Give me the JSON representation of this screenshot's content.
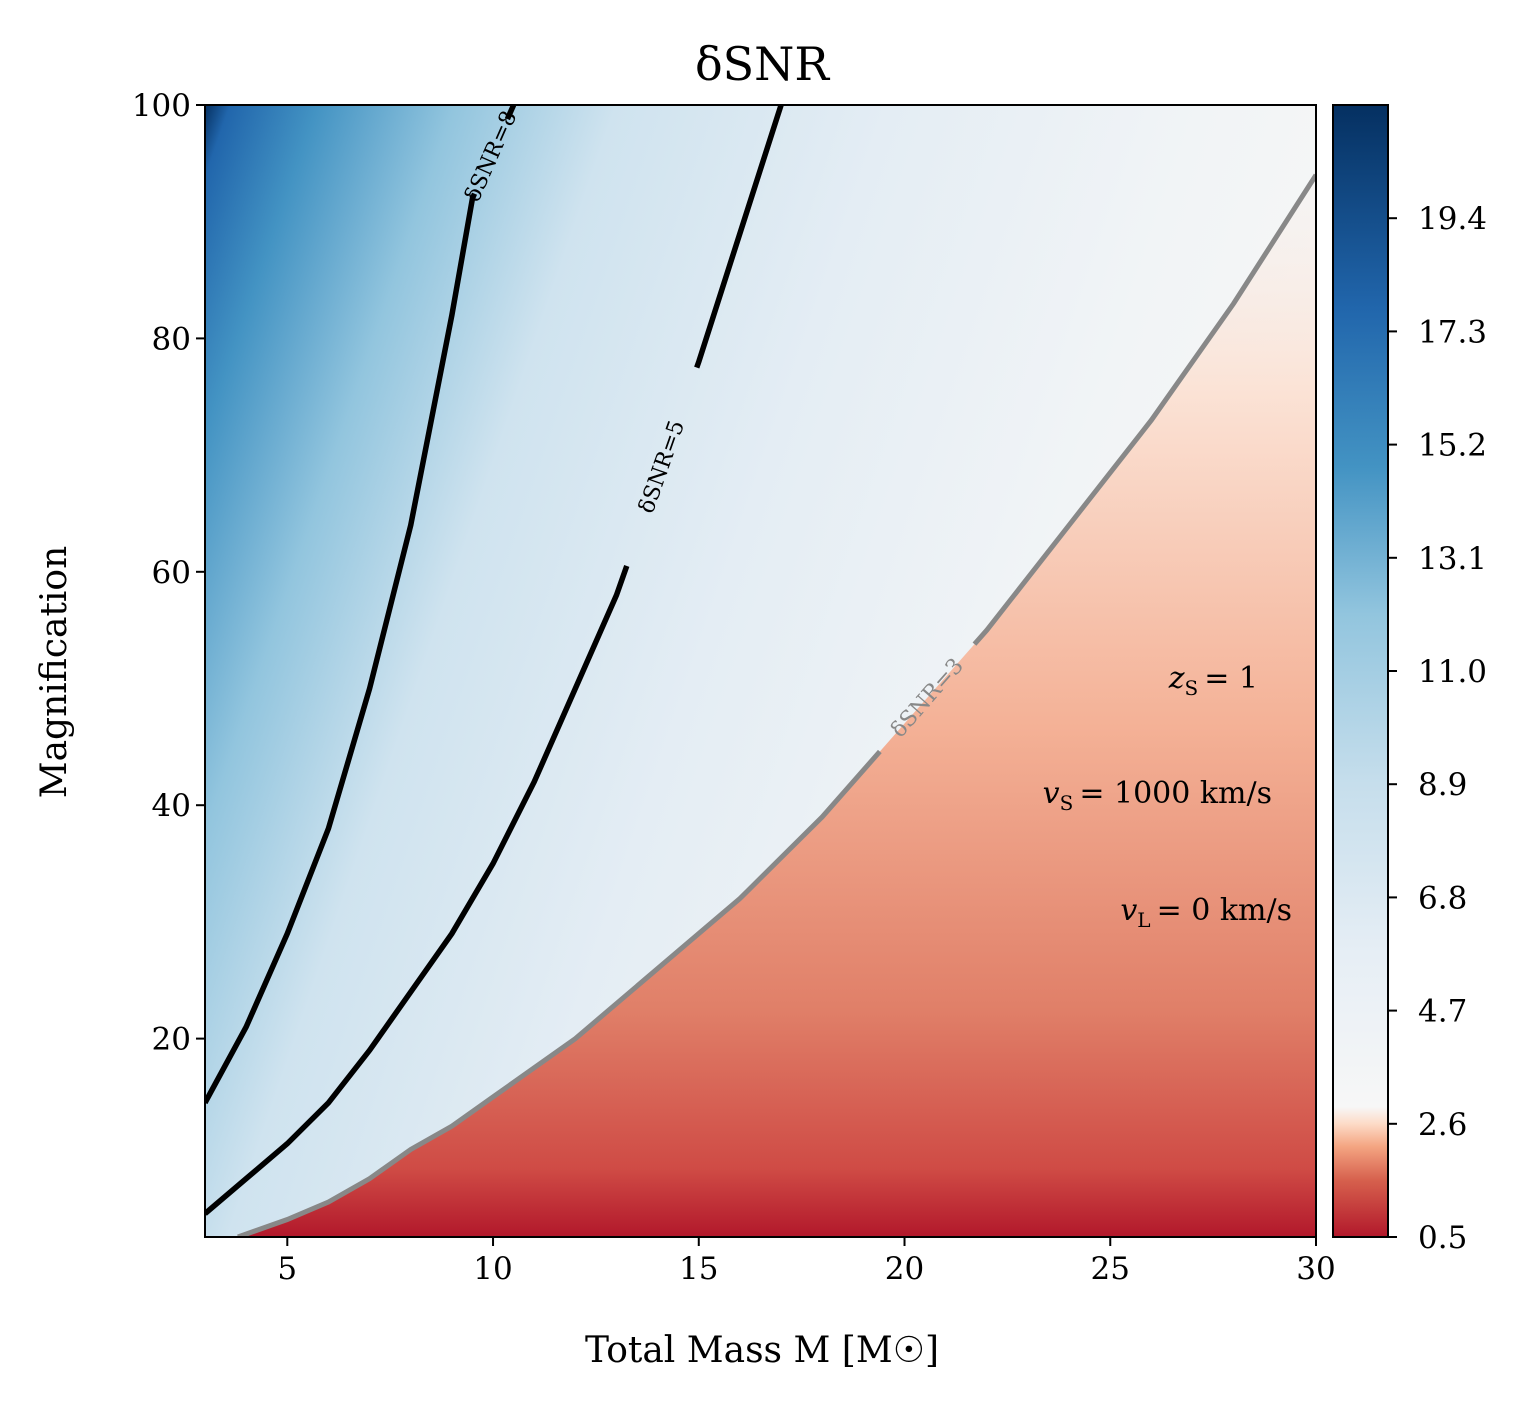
{
  "chart_data": {
    "type": "heatmap",
    "title": "δSNR",
    "xlabel": "Total Mass M [M☉]",
    "ylabel": "Magnification",
    "xlim": [
      3,
      30
    ],
    "ylim": [
      3,
      100
    ],
    "x_ticks": [
      5,
      10,
      15,
      20,
      25,
      30
    ],
    "y_ticks": [
      20,
      40,
      60,
      80,
      100
    ],
    "colormap": "RdBu",
    "colorbar": {
      "range": [
        0.5,
        21.5
      ],
      "ticks": [
        "0.5",
        "2.6",
        "4.7",
        "6.8",
        "8.9",
        "11.0",
        "13.1",
        "15.2",
        "17.3",
        "19.4"
      ]
    },
    "contours": [
      {
        "label": "δSNR=8",
        "level": 8,
        "color": "#000000",
        "points": [
          [
            3,
            14.5
          ],
          [
            4,
            21
          ],
          [
            5,
            29
          ],
          [
            6,
            38
          ],
          [
            7,
            50
          ],
          [
            8,
            64
          ],
          [
            9,
            82
          ],
          [
            9.5,
            92
          ],
          [
            10.5,
            100
          ]
        ]
      },
      {
        "label": "δSNR=5",
        "level": 5,
        "color": "#000000",
        "points": [
          [
            3,
            5
          ],
          [
            4,
            8
          ],
          [
            5,
            11
          ],
          [
            6,
            14.5
          ],
          [
            7,
            19
          ],
          [
            8,
            24
          ],
          [
            9,
            29
          ],
          [
            10,
            35
          ],
          [
            11,
            42
          ],
          [
            12,
            50
          ],
          [
            13,
            58
          ],
          [
            14,
            68
          ],
          [
            15,
            78
          ],
          [
            16,
            89
          ],
          [
            17,
            100
          ]
        ]
      },
      {
        "label": "δSNR=3",
        "level": 3,
        "color": "#888888",
        "points": [
          [
            3.8,
            3
          ],
          [
            5,
            4.5
          ],
          [
            6,
            6
          ],
          [
            7,
            8
          ],
          [
            8,
            10.5
          ],
          [
            9,
            12.5
          ],
          [
            10,
            15
          ],
          [
            12,
            20
          ],
          [
            14,
            26
          ],
          [
            16,
            32
          ],
          [
            18,
            39
          ],
          [
            20,
            47
          ],
          [
            22,
            55
          ],
          [
            24,
            64
          ],
          [
            26,
            73
          ],
          [
            28,
            83
          ],
          [
            30,
            94
          ]
        ]
      }
    ],
    "annotations": [
      "z_S = 1",
      "v_S = 1000 km/s",
      "v_L = 0 km/s"
    ],
    "annotation_parts": {
      "zs": {
        "var": "z",
        "sub": "S",
        "rest": "= 1"
      },
      "vs": {
        "var": "v",
        "sub": "S",
        "rest": "= 1000 km/s"
      },
      "vl": {
        "var": "v",
        "sub": "L",
        "rest": "= 0 km/s"
      }
    }
  }
}
